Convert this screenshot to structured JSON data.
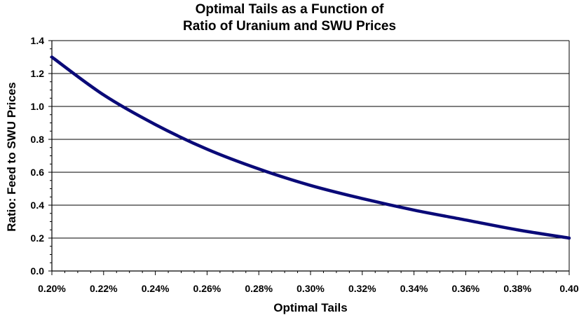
{
  "chart_data": {
    "type": "line",
    "title_line1": "Optimal Tails as a Function of",
    "title_line2": "Ratio of Uranium and SWU Prices",
    "xlabel": "Optimal Tails",
    "ylabel": "Ratio:  Feed to SWU Prices",
    "xlim": [
      0.2,
      0.4
    ],
    "ylim": [
      0,
      1.4
    ],
    "x_ticks": [
      0.2,
      0.22,
      0.24,
      0.26,
      0.28,
      0.3,
      0.32,
      0.34,
      0.36,
      0.38,
      0.4
    ],
    "x_tick_labels": [
      "0.20%",
      "0.22%",
      "0.24%",
      "0.26%",
      "0.28%",
      "0.30%",
      "0.32%",
      "0.34%",
      "0.36%",
      "0.38%",
      "0.40"
    ],
    "y_ticks": [
      0,
      0.2,
      0.4,
      0.6,
      0.8,
      1.0,
      1.2,
      1.4
    ],
    "y_tick_labels": [
      "0.0",
      "0.2",
      "0.4",
      "0.6",
      "0.8",
      "1.0",
      "1.2",
      "1.4"
    ],
    "grid": "horizontal",
    "series": [
      {
        "color": "#0a0a78",
        "x": [
          0.2,
          0.22,
          0.24,
          0.26,
          0.28,
          0.3,
          0.32,
          0.34,
          0.36,
          0.38,
          0.4
        ],
        "y": [
          1.3,
          1.07,
          0.89,
          0.74,
          0.62,
          0.52,
          0.44,
          0.37,
          0.31,
          0.25,
          0.2
        ]
      }
    ]
  }
}
